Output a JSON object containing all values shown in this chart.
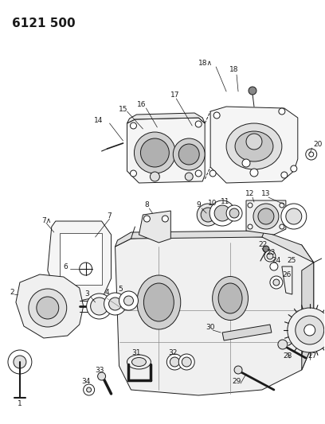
{
  "title": "6121 500",
  "bg": "#ffffff",
  "lc": "#1a1a1a",
  "fig_w": 4.08,
  "fig_h": 5.33,
  "dpi": 100,
  "title_fs": 11,
  "label_fs": 6.5
}
